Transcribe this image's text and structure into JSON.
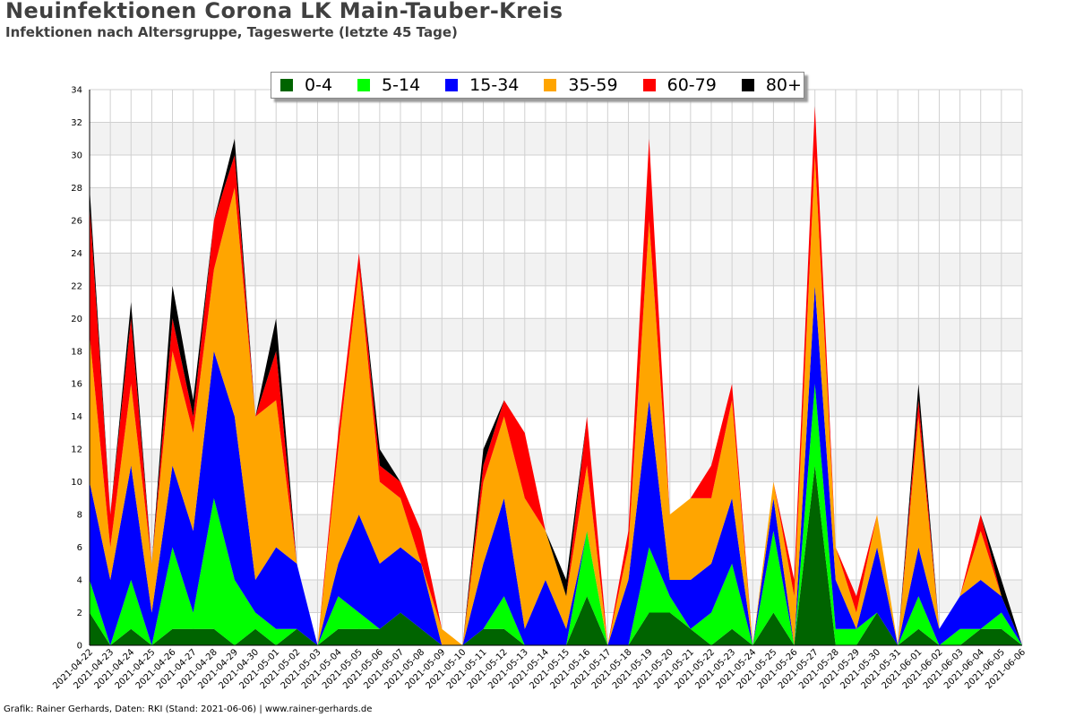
{
  "title": "Neuinfektionen Corona LK Main-Tauber-Kreis",
  "subtitle": "Infektionen nach Altersgruppe, Tageswerte (letzte 45 Tage)",
  "footer": "Grafik: Rainer Gerhards, Daten: RKI (Stand: 2021-06-06) | www.rainer-gerhards.de",
  "chart_data": {
    "type": "area",
    "stacked": true,
    "ylim": [
      0,
      34
    ],
    "yticks": [
      0,
      2,
      4,
      6,
      8,
      10,
      12,
      14,
      16,
      18,
      20,
      22,
      24,
      26,
      28,
      30,
      32,
      34
    ],
    "grid": true,
    "legend_position": "top-center",
    "x": [
      "2021-04-22",
      "2021-04-23",
      "2021-04-24",
      "2021-04-25",
      "2021-04-26",
      "2021-04-27",
      "2021-04-28",
      "2021-04-29",
      "2021-04-30",
      "2021-05-01",
      "2021-05-02",
      "2021-05-03",
      "2021-05-04",
      "2021-05-05",
      "2021-05-06",
      "2021-05-07",
      "2021-05-08",
      "2021-05-09",
      "2021-05-10",
      "2021-05-11",
      "2021-05-12",
      "2021-05-13",
      "2021-05-14",
      "2021-05-15",
      "2021-05-16",
      "2021-05-17",
      "2021-05-18",
      "2021-05-19",
      "2021-05-20",
      "2021-05-21",
      "2021-05-22",
      "2021-05-23",
      "2021-05-24",
      "2021-05-25",
      "2021-05-26",
      "2021-05-27",
      "2021-05-28",
      "2021-05-29",
      "2021-05-30",
      "2021-05-31",
      "2021-06-01",
      "2021-06-02",
      "2021-06-03",
      "2021-06-04",
      "2021-06-05",
      "2021-06-06"
    ],
    "series": [
      {
        "name": "0-4",
        "color": "#006400",
        "values": [
          2,
          0,
          1,
          0,
          1,
          1,
          1,
          0,
          1,
          0,
          1,
          0,
          1,
          1,
          1,
          2,
          1,
          0,
          0,
          1,
          1,
          0,
          0,
          0,
          3,
          0,
          0,
          2,
          2,
          1,
          0,
          1,
          0,
          2,
          0,
          11,
          0,
          0,
          2,
          0,
          1,
          0,
          0,
          1,
          1,
          0
        ]
      },
      {
        "name": "5-14",
        "color": "#00ff00",
        "values": [
          2,
          0,
          3,
          0,
          5,
          1,
          8,
          4,
          1,
          1,
          0,
          0,
          2,
          1,
          0,
          0,
          0,
          0,
          0,
          0,
          2,
          0,
          0,
          0,
          4,
          0,
          0,
          4,
          1,
          0,
          2,
          4,
          0,
          5,
          0,
          5,
          1,
          1,
          0,
          0,
          2,
          0,
          1,
          0,
          1,
          0
        ]
      },
      {
        "name": "15-34",
        "color": "#0000ff",
        "values": [
          6,
          4,
          7,
          2,
          5,
          5,
          9,
          10,
          2,
          5,
          4,
          0,
          2,
          6,
          4,
          4,
          4,
          0,
          0,
          4,
          6,
          1,
          4,
          1,
          0,
          0,
          4,
          9,
          1,
          3,
          3,
          4,
          0,
          2,
          0,
          6,
          3,
          0,
          4,
          0,
          3,
          1,
          2,
          3,
          1,
          0
        ]
      },
      {
        "name": "35-59",
        "color": "#ffa500",
        "values": [
          9,
          2,
          5,
          3,
          7,
          6,
          5,
          14,
          10,
          9,
          0,
          0,
          7,
          15,
          5,
          3,
          0,
          1,
          0,
          5,
          5,
          8,
          3,
          2,
          4,
          0,
          2,
          11,
          4,
          5,
          4,
          6,
          0,
          1,
          3,
          8,
          2,
          1,
          2,
          0,
          8,
          0,
          0,
          3,
          0,
          0
        ]
      },
      {
        "name": "60-79",
        "color": "#ff0000",
        "values": [
          8,
          2,
          4,
          0,
          2,
          1,
          3,
          2,
          0,
          3,
          0,
          0,
          1,
          1,
          1,
          1,
          2,
          0,
          0,
          1,
          1,
          4,
          0,
          0,
          3,
          0,
          1,
          5,
          0,
          0,
          2,
          1,
          0,
          0,
          1,
          3,
          0,
          1,
          0,
          0,
          1,
          0,
          0,
          1,
          0,
          0
        ]
      },
      {
        "name": "80+",
        "color": "#000000",
        "values": [
          1,
          0,
          1,
          0,
          2,
          1,
          0,
          1,
          0,
          2,
          0,
          0,
          0,
          0,
          1,
          0,
          0,
          0,
          0,
          1,
          0,
          0,
          0,
          1,
          0,
          0,
          0,
          0,
          0,
          0,
          0,
          0,
          0,
          0,
          0,
          0,
          0,
          0,
          0,
          0,
          1,
          0,
          0,
          0,
          1,
          0
        ]
      }
    ]
  }
}
